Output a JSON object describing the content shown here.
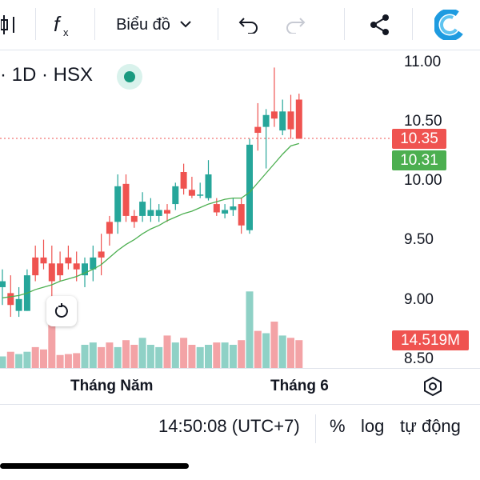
{
  "toolbar": {
    "chart_type_label": "Biểu đồ",
    "icons": [
      "candles-icon",
      "function-icon",
      "chevron-down-icon",
      "undo-icon",
      "redo-icon",
      "share-icon",
      "app-logo-icon"
    ]
  },
  "header": {
    "title": "· 1D · HSX",
    "status_color": "#1a9a80"
  },
  "colors": {
    "up": "#26a69a",
    "down": "#ef5350",
    "ma": "#4caf50",
    "vol_up": "#8fd1c6",
    "vol_down": "#f3a3a6"
  },
  "chart_data": {
    "type": "candlestick",
    "y_ticks": [
      "11.00",
      "10.50",
      "10.00",
      "9.50",
      "9.00",
      "8.50"
    ],
    "ylim": [
      8.5,
      11.0
    ],
    "x_labels": [
      "Tháng Năm",
      "Tháng 6"
    ],
    "last_price_label": "10.35",
    "ma_label": "10.31",
    "volume_label": "14.519M",
    "candles": [
      {
        "o": 9.1,
        "h": 9.25,
        "l": 8.95,
        "c": 9.15
      },
      {
        "o": 9.05,
        "h": 9.2,
        "l": 8.85,
        "c": 8.95
      },
      {
        "o": 8.9,
        "h": 9.1,
        "l": 8.85,
        "c": 9.0
      },
      {
        "o": 8.9,
        "h": 9.25,
        "l": 8.9,
        "c": 9.2
      },
      {
        "o": 9.35,
        "h": 9.45,
        "l": 9.15,
        "c": 9.2
      },
      {
        "o": 9.35,
        "h": 9.5,
        "l": 9.25,
        "c": 9.3
      },
      {
        "o": 9.3,
        "h": 9.45,
        "l": 9.0,
        "c": 9.15
      },
      {
        "o": 9.3,
        "h": 9.4,
        "l": 9.15,
        "c": 9.2
      },
      {
        "o": 9.35,
        "h": 9.45,
        "l": 9.25,
        "c": 9.3
      },
      {
        "o": 9.3,
        "h": 9.4,
        "l": 9.15,
        "c": 9.25
      },
      {
        "o": 9.2,
        "h": 9.35,
        "l": 9.1,
        "c": 9.3
      },
      {
        "o": 9.25,
        "h": 9.45,
        "l": 9.15,
        "c": 9.35
      },
      {
        "o": 9.4,
        "h": 9.55,
        "l": 9.2,
        "c": 9.35
      },
      {
        "o": 9.65,
        "h": 9.7,
        "l": 9.45,
        "c": 9.55
      },
      {
        "o": 9.65,
        "h": 10.05,
        "l": 9.55,
        "c": 9.95
      },
      {
        "o": 9.97,
        "h": 10.05,
        "l": 9.65,
        "c": 9.7
      },
      {
        "o": 9.7,
        "h": 9.75,
        "l": 9.6,
        "c": 9.65
      },
      {
        "o": 9.7,
        "h": 9.9,
        "l": 9.65,
        "c": 9.82
      },
      {
        "o": 9.7,
        "h": 9.85,
        "l": 9.65,
        "c": 9.75
      },
      {
        "o": 9.7,
        "h": 9.8,
        "l": 9.65,
        "c": 9.75
      },
      {
        "o": 9.75,
        "h": 9.8,
        "l": 9.65,
        "c": 9.72
      },
      {
        "o": 9.8,
        "h": 9.98,
        "l": 9.75,
        "c": 9.95
      },
      {
        "o": 10.07,
        "h": 10.14,
        "l": 9.88,
        "c": 9.93
      },
      {
        "o": 9.92,
        "h": 10.03,
        "l": 9.85,
        "c": 9.87
      },
      {
        "o": 9.87,
        "h": 9.98,
        "l": 9.85,
        "c": 9.88
      },
      {
        "o": 9.85,
        "h": 10.17,
        "l": 9.83,
        "c": 10.05
      },
      {
        "o": 9.8,
        "h": 9.85,
        "l": 9.7,
        "c": 9.73
      },
      {
        "o": 9.72,
        "h": 9.8,
        "l": 9.68,
        "c": 9.75
      },
      {
        "o": 9.75,
        "h": 9.85,
        "l": 9.7,
        "c": 9.78
      },
      {
        "o": 9.8,
        "h": 9.85,
        "l": 9.55,
        "c": 9.62
      },
      {
        "o": 9.58,
        "h": 10.35,
        "l": 9.55,
        "c": 10.3
      },
      {
        "o": 10.45,
        "h": 10.65,
        "l": 10.25,
        "c": 10.4
      },
      {
        "o": 10.45,
        "h": 10.6,
        "l": 10.1,
        "c": 10.55
      },
      {
        "o": 10.58,
        "h": 10.95,
        "l": 10.45,
        "c": 10.52
      },
      {
        "o": 10.42,
        "h": 10.68,
        "l": 10.38,
        "c": 10.58
      },
      {
        "o": 10.58,
        "h": 10.72,
        "l": 10.35,
        "c": 10.43
      },
      {
        "o": 10.68,
        "h": 10.73,
        "l": 10.35,
        "c": 10.35
      }
    ],
    "ma": [
      9.01,
      9.02,
      9.03,
      9.05,
      9.08,
      9.1,
      9.12,
      9.15,
      9.17,
      9.19,
      9.22,
      9.25,
      9.29,
      9.35,
      9.41,
      9.46,
      9.5,
      9.55,
      9.59,
      9.62,
      9.66,
      9.69,
      9.72,
      9.74,
      9.77,
      9.8,
      9.82,
      9.84,
      9.85,
      9.85,
      9.9,
      9.98,
      10.06,
      10.14,
      10.22,
      10.29,
      10.31
    ],
    "volumes": [
      0.25,
      0.35,
      0.3,
      0.35,
      0.45,
      0.4,
      1.5,
      0.28,
      0.3,
      0.32,
      0.5,
      0.55,
      0.45,
      0.55,
      0.45,
      0.6,
      0.5,
      0.65,
      0.5,
      0.45,
      0.7,
      0.55,
      0.65,
      0.5,
      0.45,
      0.5,
      0.55,
      0.55,
      0.5,
      0.6,
      1.65,
      0.8,
      0.75,
      1.0,
      0.7,
      0.65,
      0.6
    ]
  },
  "statusbar": {
    "time": "14:50:08 (UTC+7)",
    "percent_label": "%",
    "log_label": "log",
    "auto_label": "tự động"
  }
}
